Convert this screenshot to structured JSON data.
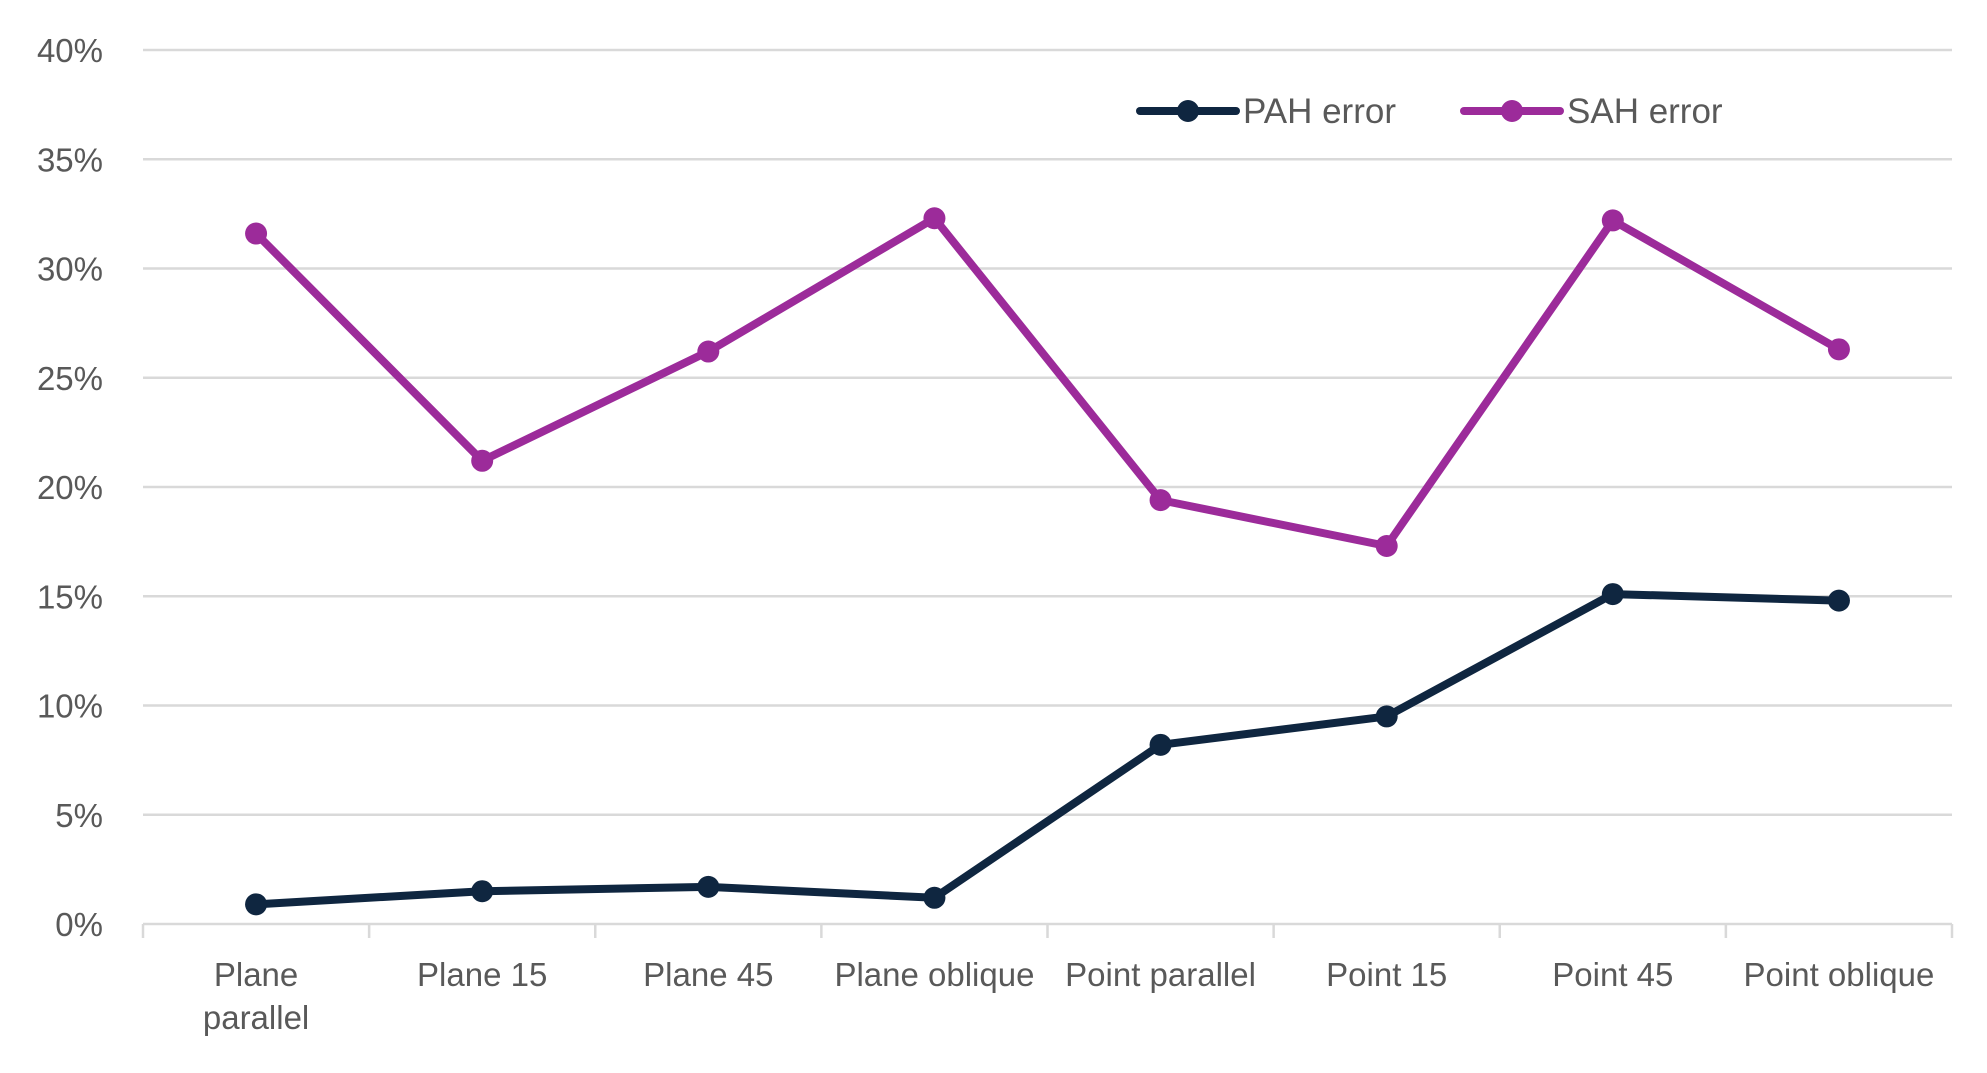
{
  "chart_data": {
    "type": "line",
    "categories": [
      [
        "Plane",
        "parallel"
      ],
      [
        "Plane 15"
      ],
      [
        "Plane 45"
      ],
      [
        "Plane oblique"
      ],
      [
        "Point parallel"
      ],
      [
        "Point 15"
      ],
      [
        "Point 45"
      ],
      [
        "Point oblique"
      ]
    ],
    "ylim": [
      0,
      40
    ],
    "ytick_step": 5,
    "ytick_labels": [
      "0%",
      "5%",
      "10%",
      "15%",
      "20%",
      "25%",
      "30%",
      "35%",
      "40%"
    ],
    "grid": true,
    "legend_position": "top-right",
    "series": [
      {
        "name": "PAH error",
        "color": "#0f2640",
        "values": [
          0.9,
          1.5,
          1.7,
          1.2,
          8.2,
          9.5,
          15.1,
          14.8
        ]
      },
      {
        "name": "SAH error",
        "color": "#9c2b9a",
        "values": [
          31.6,
          21.2,
          26.2,
          32.3,
          19.4,
          17.3,
          32.2,
          26.3
        ]
      }
    ]
  }
}
